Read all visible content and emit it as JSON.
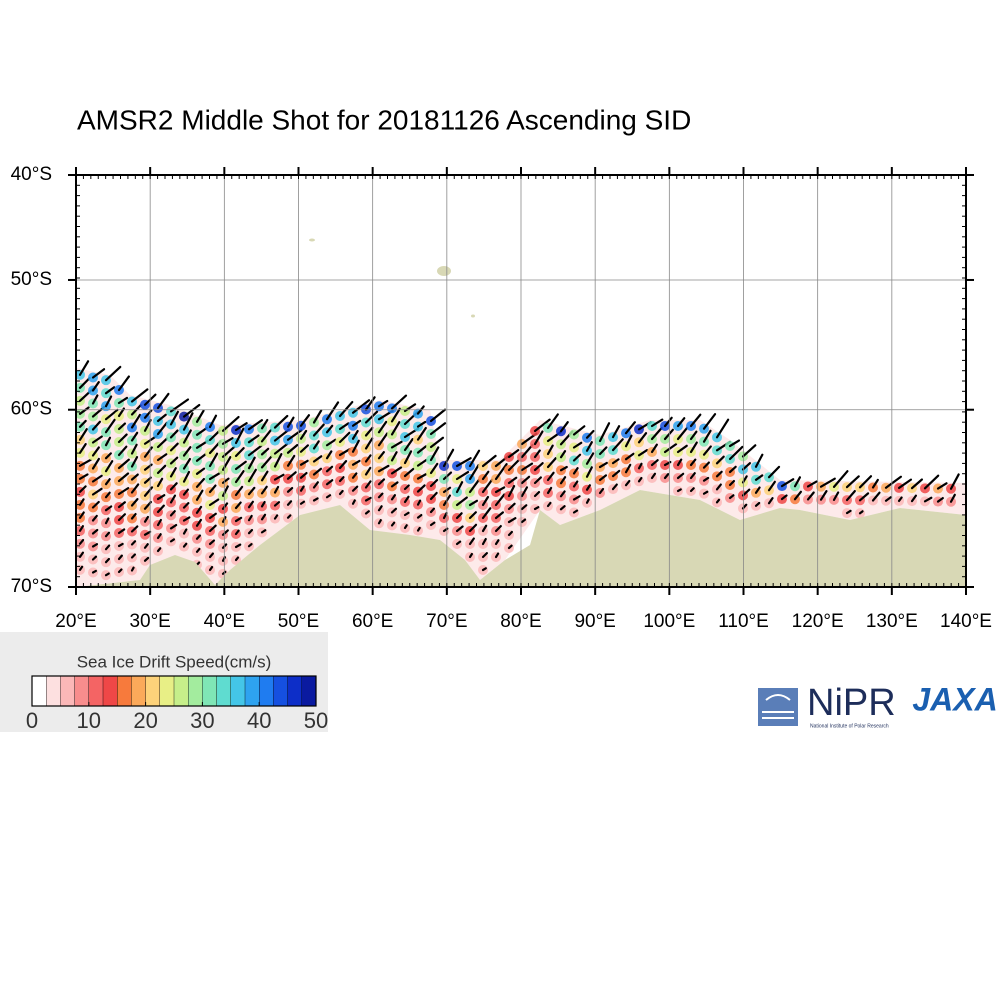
{
  "map": {
    "title": "AMSR2 Middle Shot for 20181126 Ascending SID",
    "lat_ticks": [
      {
        "value": -40,
        "label": "40°S"
      },
      {
        "value": -50,
        "label": "50°S"
      },
      {
        "value": -60,
        "label": "60°S"
      },
      {
        "value": -70,
        "label": "70°S"
      }
    ],
    "lon_ticks": [
      {
        "value": 20,
        "label": "20°E"
      },
      {
        "value": 30,
        "label": "30°E"
      },
      {
        "value": 40,
        "label": "40°E"
      },
      {
        "value": 50,
        "label": "50°E"
      },
      {
        "value": 60,
        "label": "60°E"
      },
      {
        "value": 70,
        "label": "70°E"
      },
      {
        "value": 80,
        "label": "80°E"
      },
      {
        "value": 90,
        "label": "90°E"
      },
      {
        "value": 100,
        "label": "100°E"
      },
      {
        "value": 110,
        "label": "110°E"
      },
      {
        "value": 120,
        "label": "120°E"
      },
      {
        "value": 130,
        "label": "130°E"
      },
      {
        "value": 140,
        "label": "140°E"
      }
    ],
    "colorbar": {
      "title": "Sea Ice Drift Speed(cm/s)",
      "ticks": [
        0,
        10,
        20,
        30,
        40,
        50
      ],
      "colors": [
        "#ffffff",
        "#fde0e0",
        "#fbb8b8",
        "#f88d8d",
        "#f46464",
        "#ef4747",
        "#f77a3c",
        "#fba95a",
        "#fdd27a",
        "#e8ef86",
        "#c6ef8a",
        "#a3ec9e",
        "#7fe6b6",
        "#5fdcd0",
        "#44c6e8",
        "#2ea3f0",
        "#1f7cf0",
        "#1550e0",
        "#0d2ec8",
        "#0a1aa0"
      ]
    },
    "logos": {
      "nipr": "NiPR",
      "nipr_subtitle": "National Institute of Polar Research",
      "jaxa": "JAXA"
    }
  }
}
